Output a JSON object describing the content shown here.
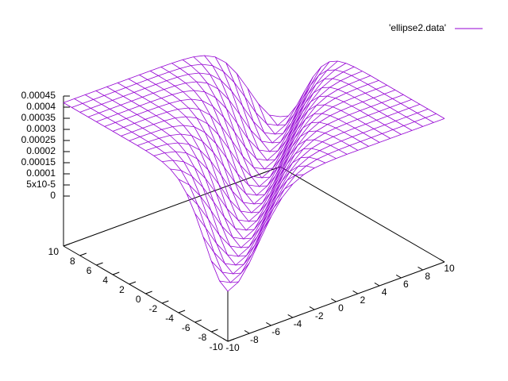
{
  "chart_data": {
    "type": "surface",
    "series": [
      {
        "name": "'ellipse2.data'",
        "color": "#9400d3"
      }
    ],
    "x": [
      -10,
      -9,
      -8,
      -7,
      -6,
      -5,
      -4,
      -3,
      -2,
      -1,
      0,
      1,
      2,
      3,
      4,
      5,
      6,
      7,
      8,
      9,
      10
    ],
    "y": [
      -10,
      -9,
      -8,
      -7,
      -6,
      -5,
      -4,
      -3,
      -2,
      -1,
      0,
      1,
      2,
      3,
      4,
      5,
      6,
      7,
      8,
      9,
      10
    ],
    "z": [
      [
        0,
        2.5e-05,
        9.3e-05,
        0.000181,
        0.000265,
        0.000332,
        0.000376,
        0.0004,
        0.000412,
        0.000417,
        0.000419,
        0.00042,
        0.00042,
        0.00042,
        0.00042,
        0.00042,
        0.00042,
        0.00042,
        0.00042,
        0.00042,
        0.00042
      ],
      [
        2.5e-05,
        0,
        2.5e-05,
        9.3e-05,
        0.000181,
        0.000265,
        0.000332,
        0.000376,
        0.0004,
        0.000412,
        0.000417,
        0.000419,
        0.00042,
        0.00042,
        0.00042,
        0.00042,
        0.00042,
        0.00042,
        0.00042,
        0.00042,
        0.00042
      ],
      [
        9.3e-05,
        2.5e-05,
        0,
        2.5e-05,
        9.3e-05,
        0.000181,
        0.000265,
        0.000332,
        0.000376,
        0.0004,
        0.000412,
        0.000417,
        0.000419,
        0.00042,
        0.00042,
        0.00042,
        0.00042,
        0.00042,
        0.00042,
        0.00042,
        0.00042
      ],
      [
        0.000181,
        9.3e-05,
        2.5e-05,
        0,
        2.5e-05,
        9.3e-05,
        0.000181,
        0.000265,
        0.000332,
        0.000376,
        0.0004,
        0.000412,
        0.000417,
        0.000419,
        0.00042,
        0.00042,
        0.00042,
        0.00042,
        0.00042,
        0.00042,
        0.00042
      ],
      [
        0.000265,
        0.000181,
        9.3e-05,
        2.5e-05,
        0,
        2.5e-05,
        9.3e-05,
        0.000181,
        0.000265,
        0.000332,
        0.000376,
        0.0004,
        0.000412,
        0.000417,
        0.000419,
        0.00042,
        0.00042,
        0.00042,
        0.00042,
        0.00042,
        0.00042
      ],
      [
        0.000332,
        0.000265,
        0.000181,
        9.3e-05,
        2.5e-05,
        0,
        2.5e-05,
        9.3e-05,
        0.000181,
        0.000265,
        0.000332,
        0.000376,
        0.0004,
        0.000412,
        0.000417,
        0.000419,
        0.00042,
        0.00042,
        0.00042,
        0.00042,
        0.00042
      ],
      [
        0.000376,
        0.000332,
        0.000265,
        0.000181,
        9.3e-05,
        2.5e-05,
        0,
        2.5e-05,
        9.3e-05,
        0.000181,
        0.000265,
        0.000332,
        0.000376,
        0.0004,
        0.000412,
        0.000417,
        0.000419,
        0.00042,
        0.00042,
        0.00042,
        0.00042
      ],
      [
        0.0004,
        0.000376,
        0.000332,
        0.000265,
        0.000181,
        9.3e-05,
        2.5e-05,
        0,
        2.5e-05,
        9.3e-05,
        0.000181,
        0.000265,
        0.000332,
        0.000376,
        0.0004,
        0.000412,
        0.000417,
        0.000419,
        0.00042,
        0.00042,
        0.00042
      ],
      [
        0.000412,
        0.0004,
        0.000376,
        0.000332,
        0.000265,
        0.000181,
        9.3e-05,
        2.5e-05,
        0,
        2.5e-05,
        9.3e-05,
        0.000181,
        0.000265,
        0.000332,
        0.000376,
        0.0004,
        0.000412,
        0.000417,
        0.000419,
        0.00042,
        0.00042
      ],
      [
        0.000417,
        0.000412,
        0.0004,
        0.000376,
        0.000332,
        0.000265,
        0.000181,
        9.3e-05,
        2.5e-05,
        0,
        2.5e-05,
        9.3e-05,
        0.000181,
        0.000265,
        0.000332,
        0.000376,
        0.0004,
        0.000412,
        0.000417,
        0.000419,
        0.00042
      ],
      [
        0.000419,
        0.000417,
        0.000412,
        0.0004,
        0.000376,
        0.000332,
        0.000265,
        0.000181,
        9.3e-05,
        2.5e-05,
        0,
        2.5e-05,
        9.3e-05,
        0.000181,
        0.000265,
        0.000332,
        0.000376,
        0.0004,
        0.000412,
        0.000417,
        0.000419
      ],
      [
        0.00042,
        0.000419,
        0.000417,
        0.000412,
        0.0004,
        0.000376,
        0.000332,
        0.000265,
        0.000181,
        9.3e-05,
        2.5e-05,
        0,
        2.5e-05,
        9.3e-05,
        0.000181,
        0.000265,
        0.000332,
        0.000376,
        0.0004,
        0.000412,
        0.000417
      ],
      [
        0.00042,
        0.00042,
        0.000419,
        0.000417,
        0.000412,
        0.0004,
        0.000376,
        0.000332,
        0.000265,
        0.000181,
        9.3e-05,
        2.5e-05,
        0,
        2.5e-05,
        9.3e-05,
        0.000181,
        0.000265,
        0.000332,
        0.000376,
        0.0004,
        0.000412
      ],
      [
        0.00042,
        0.00042,
        0.00042,
        0.000419,
        0.000417,
        0.000412,
        0.0004,
        0.000376,
        0.000332,
        0.000265,
        0.000181,
        9.3e-05,
        2.5e-05,
        0,
        2.5e-05,
        9.3e-05,
        0.000181,
        0.000265,
        0.000332,
        0.000376,
        0.0004
      ],
      [
        0.00042,
        0.00042,
        0.00042,
        0.00042,
        0.000419,
        0.000417,
        0.000412,
        0.0004,
        0.000376,
        0.000332,
        0.000265,
        0.000181,
        9.3e-05,
        2.5e-05,
        0,
        2.5e-05,
        9.3e-05,
        0.000181,
        0.000265,
        0.000332,
        0.000376
      ],
      [
        0.00042,
        0.00042,
        0.00042,
        0.00042,
        0.00042,
        0.000419,
        0.000417,
        0.000412,
        0.0004,
        0.000376,
        0.000332,
        0.000265,
        0.000181,
        9.3e-05,
        2.5e-05,
        0,
        2.5e-05,
        9.3e-05,
        0.000181,
        0.000265,
        0.000332
      ],
      [
        0.00042,
        0.00042,
        0.00042,
        0.00042,
        0.00042,
        0.00042,
        0.000419,
        0.000417,
        0.000412,
        0.0004,
        0.000376,
        0.000332,
        0.000265,
        0.000181,
        9.3e-05,
        2.5e-05,
        0,
        2.5e-05,
        9.3e-05,
        0.000181,
        0.000265
      ],
      [
        0.00042,
        0.00042,
        0.00042,
        0.00042,
        0.00042,
        0.00042,
        0.00042,
        0.000419,
        0.000417,
        0.000412,
        0.0004,
        0.000376,
        0.000332,
        0.000265,
        0.000181,
        9.3e-05,
        2.5e-05,
        0,
        2.5e-05,
        9.3e-05,
        0.000181
      ],
      [
        0.00042,
        0.00042,
        0.00042,
        0.00042,
        0.00042,
        0.00042,
        0.00042,
        0.00042,
        0.000419,
        0.000417,
        0.000412,
        0.0004,
        0.000376,
        0.000332,
        0.000265,
        0.000181,
        9.3e-05,
        2.5e-05,
        0,
        2.5e-05,
        9.3e-05
      ],
      [
        0.00042,
        0.00042,
        0.00042,
        0.00042,
        0.00042,
        0.00042,
        0.00042,
        0.00042,
        0.00042,
        0.000419,
        0.000417,
        0.000412,
        0.0004,
        0.000376,
        0.000332,
        0.000265,
        0.000181,
        9.3e-05,
        2.5e-05,
        0,
        2.5e-05
      ],
      [
        0.00042,
        0.00042,
        0.00042,
        0.00042,
        0.00042,
        0.00042,
        0.00042,
        0.00042,
        0.00042,
        0.00042,
        0.000419,
        0.000417,
        0.000412,
        0.0004,
        0.000376,
        0.000332,
        0.000265,
        0.000181,
        9.3e-05,
        2.5e-05,
        0
      ]
    ],
    "xlim": [
      -10,
      10
    ],
    "ylim": [
      -10,
      10
    ],
    "zlim": [
      0,
      0.00045
    ],
    "xticks": [
      -10,
      -8,
      -6,
      -4,
      -2,
      0,
      2,
      4,
      6,
      8,
      10
    ],
    "yticks": [
      -10,
      -8,
      -6,
      -4,
      -2,
      0,
      2,
      4,
      6,
      8,
      10
    ],
    "zticks": [
      0,
      {
        "value": 5e-05,
        "label": "5x10-5"
      },
      0.0001,
      0.00015,
      0.0002,
      0.00025,
      0.0003,
      0.00035,
      0.0004,
      0.00045
    ],
    "legend": "top-right"
  }
}
